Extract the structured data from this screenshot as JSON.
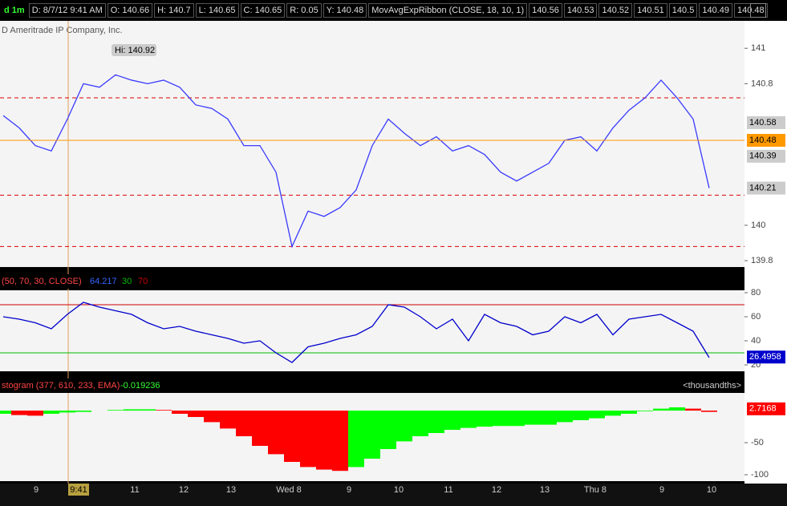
{
  "header": {
    "timeframe": "d 1m",
    "date": "D: 8/7/12 9:41 AM",
    "open": "O: 140.66",
    "high": "H: 140.7",
    "low": "L: 140.65",
    "close": "C: 140.65",
    "range": "R: 0.05",
    "y": "Y: 140.48",
    "study": "MovAvgExpRibbon (CLOSE, 18, 10, 1)",
    "ribbon": [
      "140.56",
      "140.53",
      "140.52",
      "140.51",
      "140.5",
      "140.49",
      "140.48"
    ]
  },
  "watermark": "D Ameritrade IP Company, Inc.",
  "x_axis_labels": [
    "9",
    "9:41",
    "11",
    "12",
    "13",
    "Wed  8",
    "9",
    "10",
    "11",
    "12",
    "13",
    "Thu  8",
    "9",
    "10"
  ],
  "chart_data": [
    {
      "type": "line",
      "color": "#3a3aff",
      "annotation": "Hi: 140.92",
      "values": [
        140.62,
        140.55,
        140.45,
        140.42,
        140.6,
        140.8,
        140.78,
        140.85,
        140.82,
        140.8,
        140.82,
        140.78,
        140.68,
        140.66,
        140.6,
        140.45,
        140.45,
        140.3,
        139.88,
        140.08,
        140.05,
        140.1,
        140.2,
        140.45,
        140.6,
        140.52,
        140.45,
        140.5,
        140.42,
        140.45,
        140.4,
        140.3,
        140.25,
        140.3,
        140.35,
        140.48,
        140.5,
        140.42,
        140.55,
        140.65,
        140.72,
        140.82,
        140.72,
        140.6,
        140.21
      ],
      "ylim": [
        139.764,
        141.155
      ],
      "yticks": [
        141,
        140.8,
        140,
        139.8
      ],
      "price_tags": [
        140.58,
        140.48,
        140.39,
        140.21
      ],
      "tag_color": "#ff9900",
      "levels": [
        140.72,
        140.17,
        139.88
      ],
      "level_color": "#dd0000"
    },
    {
      "type": "line",
      "color": "#0000cc",
      "label": "(50, 70, 30, CLOSE)",
      "value_label": "64.217",
      "levels": [
        "30",
        "70"
      ],
      "level_colors": [
        "#00bb00",
        "#cc0000"
      ],
      "values": [
        60,
        58,
        55,
        50,
        62,
        72,
        68,
        65,
        62,
        55,
        50,
        52,
        48,
        45,
        42,
        38,
        40,
        30,
        22,
        35,
        38,
        42,
        45,
        52,
        70,
        68,
        60,
        50,
        58,
        40,
        62,
        55,
        52,
        45,
        48,
        60,
        55,
        62,
        45,
        58,
        60,
        62,
        55,
        48,
        26
      ],
      "ylim": [
        14.67,
        82
      ],
      "yticks": [
        20,
        40,
        60,
        80
      ],
      "tag": 26.4958,
      "tag_color": "#0000cc"
    },
    {
      "type": "bar",
      "label": "stogram (377, 610, 233, EMA)",
      "value_label": "-0.019236",
      "units": "<thousandths>",
      "up_color": "#00ff00",
      "down_color": "#ff0000",
      "values": [
        -5,
        -7,
        -8,
        -5,
        -3,
        -2,
        0,
        1,
        2,
        2,
        1,
        -5,
        -10,
        -18,
        -28,
        -40,
        -55,
        -68,
        -80,
        -88,
        -92,
        -94,
        -88,
        -75,
        -60,
        -48,
        -40,
        -35,
        -30,
        -27,
        -25,
        -24,
        -24,
        -22,
        -22,
        -18,
        -15,
        -12,
        -8,
        -5,
        -1,
        3,
        5,
        3,
        -2
      ],
      "ylim": [
        -110,
        27.5
      ],
      "yticks": [
        -50,
        -100
      ],
      "tag": 2.7168,
      "tag_color": "#ff0000"
    }
  ]
}
